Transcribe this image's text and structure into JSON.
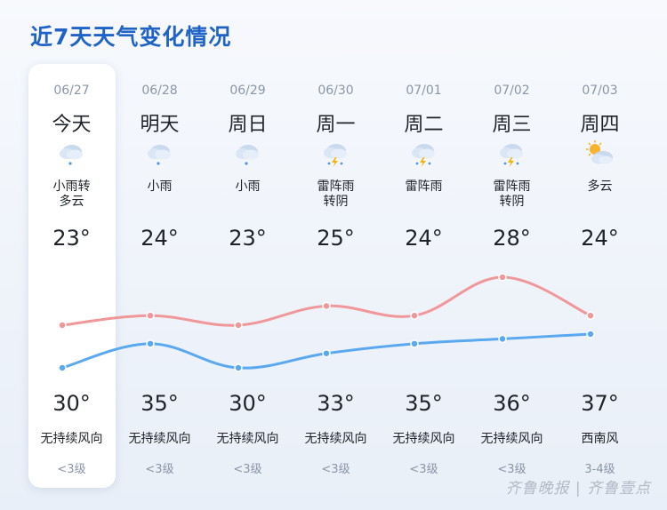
{
  "title": "近7天天气变化情况",
  "days": [
    {
      "date": "06/27",
      "name": "今天",
      "desc": "小雨转\n多云",
      "high": "23°",
      "low": "30°",
      "wind_dir": "无持续风向",
      "wind_level": "<3级",
      "icon": "light-rain-icon"
    },
    {
      "date": "06/28",
      "name": "明天",
      "desc": "小雨",
      "high": "24°",
      "low": "35°",
      "wind_dir": "无持续风向",
      "wind_level": "<3级",
      "icon": "light-rain-icon"
    },
    {
      "date": "06/29",
      "name": "周日",
      "desc": "小雨",
      "high": "23°",
      "low": "30°",
      "wind_dir": "无持续风向",
      "wind_level": "<3级",
      "icon": "light-rain-icon"
    },
    {
      "date": "06/30",
      "name": "周一",
      "desc": "雷阵雨\n转阴",
      "high": "25°",
      "low": "33°",
      "wind_dir": "无持续风向",
      "wind_level": "<3级",
      "icon": "thunderstorm-icon"
    },
    {
      "date": "07/01",
      "name": "周二",
      "desc": "雷阵雨",
      "high": "24°",
      "low": "35°",
      "wind_dir": "无持续风向",
      "wind_level": "<3级",
      "icon": "thunderstorm-icon"
    },
    {
      "date": "07/02",
      "name": "周三",
      "desc": "雷阵雨\n转阴",
      "high": "28°",
      "low": "36°",
      "wind_dir": "无持续风向",
      "wind_level": "<3级",
      "icon": "thunderstorm-icon"
    },
    {
      "date": "07/03",
      "name": "周四",
      "desc": "多云",
      "high": "24°",
      "low": "37°",
      "wind_dir": "西南风",
      "wind_level": "3-4级",
      "icon": "partly-cloudy-icon"
    }
  ],
  "chart_data": {
    "type": "line",
    "categories": [
      "06/27",
      "06/28",
      "06/29",
      "06/30",
      "07/01",
      "07/02",
      "07/03"
    ],
    "series": [
      {
        "values": [
          23,
          24,
          23,
          25,
          24,
          28,
          24
        ],
        "color": "#f0979a"
      },
      {
        "values": [
          30,
          35,
          30,
          33,
          35,
          36,
          37
        ],
        "color": "#5aa8f0"
      }
    ]
  },
  "watermark": "齐鲁晚报 | 齐鲁壹点"
}
